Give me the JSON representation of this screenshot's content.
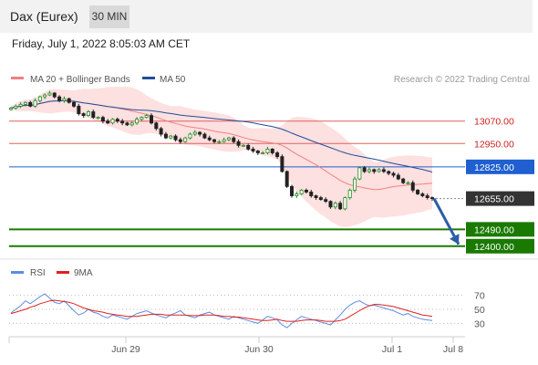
{
  "header": {
    "title": "Dax (Eurex)",
    "timeframe": "30 MIN",
    "datetime": "Friday, July 1, 2022 8:05:03 AM CET"
  },
  "legend": {
    "ma20": "MA 20 + Bollinger Bands",
    "ma50": "MA 50",
    "credit": "Research © 2022 Trading Central",
    "rsi": "RSI",
    "ma9": "9MA"
  },
  "colors": {
    "ma20": "#f08080",
    "bands": "#fde0e0",
    "ma50": "#1f4e9a",
    "resistance": "#e06060",
    "pivot": "#1f5fd0",
    "support": "#1a7a00",
    "last_price": "#333333",
    "arrow": "#2b5ea8",
    "candle_up": "#228b22",
    "candle_down": "#222222",
    "rsi": "#5b8de0",
    "rsi_ma": "#e02020"
  },
  "chart_data": [
    {
      "type": "candlestick",
      "x_ticks": [
        "Jun 29",
        "Jun 30",
        "Jul 1",
        "Jul 8"
      ],
      "ylim": [
        12350,
        13230
      ],
      "levels": [
        {
          "value": 13070.0,
          "label": "13070.00",
          "kind": "resistance"
        },
        {
          "value": 12950.0,
          "label": "12950.00",
          "kind": "resistance"
        },
        {
          "value": 12825.0,
          "label": "12825.00",
          "kind": "pivot"
        },
        {
          "value": 12490.0,
          "label": "12490.00",
          "kind": "support"
        },
        {
          "value": 12400.0,
          "label": "12400.00",
          "kind": "support"
        }
      ],
      "last_price": {
        "value": 12655.0,
        "label": "12655.00"
      },
      "close": [
        13140,
        13150,
        13160,
        13170,
        13150,
        13180,
        13200,
        13210,
        13220,
        13200,
        13180,
        13190,
        13170,
        13150,
        13110,
        13100,
        13120,
        13090,
        13090,
        13070,
        13060,
        13080,
        13070,
        13060,
        13050,
        13060,
        13080,
        13090,
        13100,
        13060,
        13030,
        13000,
        12980,
        12990,
        12970,
        12960,
        12980,
        13000,
        13010,
        13000,
        12980,
        12970,
        12960,
        12960,
        12970,
        12980,
        12960,
        12940,
        12940,
        12920,
        12910,
        12900,
        12900,
        12920,
        12900,
        12880,
        12800,
        12720,
        12670,
        12680,
        12700,
        12690,
        12670,
        12660,
        12650,
        12640,
        12610,
        12630,
        12600,
        12660,
        12700,
        12760,
        12820,
        12800,
        12810,
        12800,
        12810,
        12800,
        12790,
        12780,
        12760,
        12740,
        12740,
        12700,
        12680,
        12670,
        12660,
        12655
      ],
      "projection": {
        "from": 12655,
        "to": 12410
      }
    },
    {
      "type": "line",
      "title": "RSI",
      "ylim": [
        15,
        85
      ],
      "y_ticks": [
        70,
        50,
        30
      ],
      "series": [
        {
          "name": "RSI",
          "values": [
            45,
            50,
            55,
            62,
            58,
            63,
            68,
            72,
            66,
            60,
            58,
            62,
            55,
            48,
            42,
            45,
            50,
            46,
            44,
            40,
            38,
            42,
            40,
            38,
            36,
            40,
            44,
            46,
            48,
            45,
            42,
            40,
            38,
            42,
            45,
            48,
            42,
            40,
            38,
            42,
            44,
            46,
            42,
            40,
            38,
            36,
            40,
            38,
            36,
            34,
            32,
            30,
            35,
            40,
            38,
            35,
            28,
            24,
            30,
            35,
            40,
            38,
            36,
            34,
            32,
            30,
            28,
            35,
            42,
            50,
            56,
            60,
            62,
            58,
            55,
            56,
            54,
            52,
            50,
            48,
            45,
            42,
            44,
            40,
            38,
            36,
            35,
            34
          ]
        },
        {
          "name": "9MA",
          "values": [
            44,
            46,
            48,
            50,
            53,
            55,
            58,
            60,
            62,
            63,
            62,
            61,
            60,
            58,
            55,
            52,
            50,
            48,
            47,
            46,
            44,
            43,
            42,
            41,
            40,
            40,
            40,
            41,
            42,
            43,
            43,
            43,
            42,
            42,
            42,
            42,
            42,
            41,
            41,
            41,
            42,
            42,
            42,
            41,
            40,
            40,
            39,
            39,
            38,
            37,
            36,
            35,
            34,
            34,
            35,
            36,
            34,
            33,
            33,
            33,
            34,
            35,
            35,
            35,
            34,
            33,
            33,
            33,
            34,
            36,
            40,
            44,
            48,
            52,
            55,
            57,
            57,
            56,
            55,
            54,
            52,
            50,
            48,
            46,
            44,
            42,
            41,
            40
          ]
        }
      ]
    }
  ]
}
